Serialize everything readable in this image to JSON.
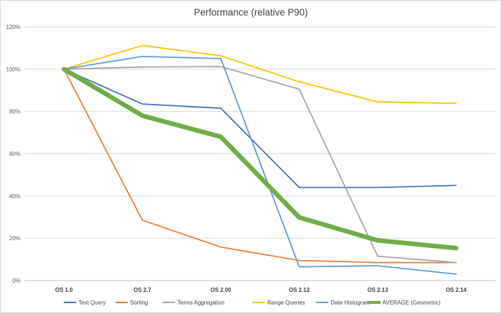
{
  "chart_data": {
    "type": "line",
    "title": "Performance (relative P90)",
    "xlabel": "",
    "ylabel": "",
    "categories": [
      "OS 1.0",
      "OS 2.7",
      "OS 2.00",
      "OS 2.12",
      "OS 2.13",
      "OS 2.14"
    ],
    "ylim": [
      0,
      120
    ],
    "yticks": [
      0,
      20,
      40,
      60,
      80,
      100,
      120
    ],
    "ytick_labels": [
      "0%",
      "20%",
      "40%",
      "60%",
      "80%",
      "100%",
      "120%"
    ],
    "grid": true,
    "legend_position": "bottom",
    "series": [
      {
        "name": "Text Query",
        "color": "#4472c4",
        "bold": false,
        "values": [
          100,
          83.5,
          81.5,
          44,
          44,
          45
        ]
      },
      {
        "name": "Sorting",
        "color": "#ed7d31",
        "bold": false,
        "values": [
          100,
          28.5,
          15.8,
          9.5,
          8.5,
          8.5
        ]
      },
      {
        "name": "Terms Aggregation",
        "color": "#a5a5a5",
        "bold": false,
        "values": [
          100,
          101,
          101.2,
          90.5,
          11.5,
          8.5
        ]
      },
      {
        "name": "Range Queries",
        "color": "#ffc000",
        "bold": false,
        "values": [
          100,
          111.2,
          106.3,
          94,
          84.5,
          83.8
        ]
      },
      {
        "name": "Date Histogram",
        "color": "#5b9bd5",
        "bold": false,
        "values": [
          100,
          106,
          105,
          6.5,
          7,
          3
        ]
      },
      {
        "name": "AVERAGE (Geometric)",
        "color": "#70ad47",
        "bold": true,
        "values": [
          100,
          78,
          68,
          29.8,
          19,
          15.3
        ]
      }
    ]
  }
}
